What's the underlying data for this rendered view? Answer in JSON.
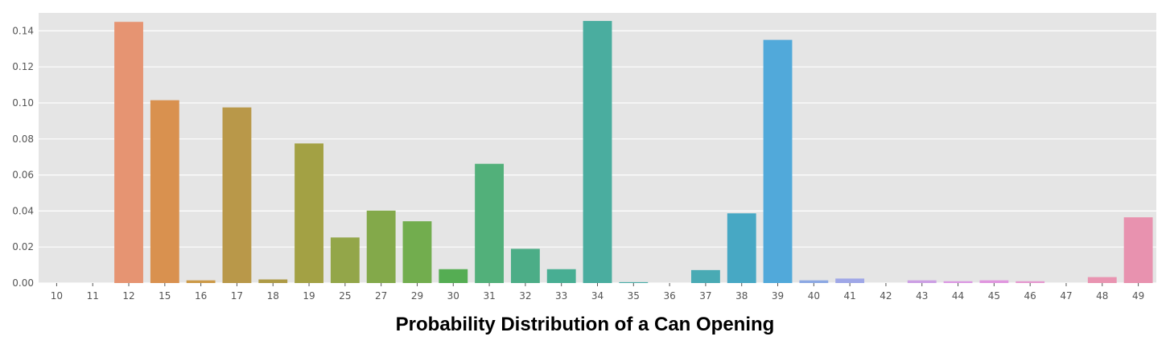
{
  "caption": "Probability Distribution of a Can Opening",
  "chart_data": {
    "type": "bar",
    "title": "",
    "xlabel": "",
    "ylabel": "",
    "ylim": [
      0,
      0.15
    ],
    "yticks": [
      "0.00",
      "0.02",
      "0.04",
      "0.06",
      "0.08",
      "0.10",
      "0.12",
      "0.14"
    ],
    "ytick_values": [
      0,
      0.02,
      0.04,
      0.06,
      0.08,
      0.1,
      0.12,
      0.14
    ],
    "grid": true,
    "background_color": "#e5e5e5",
    "grid_color": "#ffffff",
    "categories": [
      "10",
      "11",
      "12",
      "15",
      "16",
      "17",
      "18",
      "19",
      "25",
      "27",
      "29",
      "30",
      "31",
      "32",
      "33",
      "34",
      "35",
      "36",
      "37",
      "38",
      "39",
      "40",
      "41",
      "42",
      "43",
      "44",
      "45",
      "46",
      "47",
      "48",
      "49"
    ],
    "values": [
      0,
      0,
      0.145,
      0.1015,
      0.0015,
      0.0975,
      0.002,
      0.0775,
      0.0253,
      0.0402,
      0.0343,
      0.0077,
      0.0662,
      0.019,
      0.0077,
      0.1455,
      0.0005,
      0,
      0.0072,
      0.0387,
      0.135,
      0.0015,
      0.0025,
      0,
      0.0015,
      0.001,
      0.0015,
      0.001,
      0,
      0.0033,
      0.0365
    ],
    "colors": [
      "#e58c8a",
      "#e79476",
      "#e69472",
      "#d9914f",
      "#cc9a48",
      "#b99849",
      "#ae9b46",
      "#a3a144",
      "#93a649",
      "#83a94a",
      "#72ad4e",
      "#55ad53",
      "#52b07a",
      "#4cad87",
      "#48ae93",
      "#4aad9f",
      "#48aca6",
      "#4aaaa8",
      "#49aab4",
      "#47a8c4",
      "#51a9da",
      "#8ca8e3",
      "#9fa7e7",
      "#bda5e8",
      "#cc9fe4",
      "#db98e3",
      "#e096df",
      "#e598cf",
      "#ea96bd",
      "#e994b1",
      "#e892af"
    ]
  }
}
